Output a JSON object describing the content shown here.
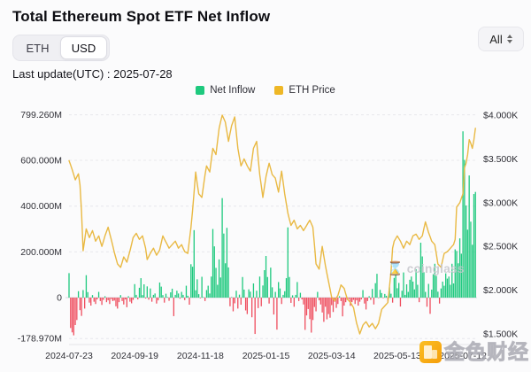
{
  "header": {
    "title": "Total Ethereum Spot ETF Net Inflow",
    "toggle": {
      "options": [
        "ETH",
        "USD"
      ],
      "selected": "USD"
    },
    "range_select": {
      "label": "All"
    },
    "last_update": "Last update(UTC) : 2025-07-28"
  },
  "legend": [
    {
      "label": "Net Inflow",
      "color": "#1ec97e"
    },
    {
      "label": "ETH Price",
      "color": "#eeb726"
    }
  ],
  "watermarks": {
    "coinglass": "coinglass",
    "jinse": "金色财经",
    "hourglass_icon": "⌛"
  },
  "chart_data": {
    "type": "bar+line",
    "title": "Total Ethereum Spot ETF Net Inflow",
    "legend_position": "top-center",
    "grid": "dashed-horizontal",
    "y_left": {
      "unit": "USD millions (net inflow)",
      "tick_labels": [
        "799.260M",
        "600.000M",
        "400.000M",
        "200.000M",
        "0",
        "-178.970M"
      ],
      "tick_values": [
        799.26,
        600,
        400,
        200,
        0,
        -178.97
      ],
      "min": -178.97,
      "max": 799.26
    },
    "y_right": {
      "unit": "ETH price USD",
      "tick_labels": [
        "$4.000K",
        "$3.500K",
        "$3.000K",
        "$2.500K",
        "$2.000K",
        "$1.500K"
      ],
      "tick_values": [
        4.0,
        3.5,
        3.0,
        2.5,
        2.0,
        1.5
      ],
      "min": 1.45,
      "max": 4.0
    },
    "x_axis": {
      "tick_labels": [
        "2024-07-23",
        "2024-09-19",
        "2024-11-18",
        "2025-01-15",
        "2025-03-14",
        "2025-05-13",
        "2025-07-12"
      ],
      "tick_indices": [
        0,
        42,
        84,
        126,
        168,
        210,
        252
      ],
      "start": "2024-07-23",
      "end": "2025-07-28"
    },
    "series": [
      {
        "name": "Net Inflow",
        "type": "bar",
        "color_positive": "#1ec97e",
        "color_negative": "#ef4d5e",
        "unit": "USD millions",
        "values": [
          107,
          -133,
          -152,
          -165,
          -120,
          -98,
          28,
          -55,
          -80,
          33,
          -48,
          98,
          24,
          -22,
          -35,
          11,
          -18,
          -28,
          -8,
          25,
          -15,
          -32,
          -10,
          6,
          -20,
          -12,
          -28,
          -6,
          -15,
          -13,
          -38,
          -48,
          -20,
          11,
          -15,
          -30,
          -8,
          -42,
          6,
          -18,
          -25,
          -10,
          59,
          12,
          -8,
          43,
          85,
          11,
          58,
          -4,
          49,
          -9,
          40,
          -18,
          12,
          18,
          -26,
          -12,
          66,
          48,
          11,
          -22,
          17,
          2,
          -14,
          23,
          39,
          -81,
          12,
          30,
          18,
          -5,
          25,
          12,
          -11,
          52,
          8,
          -31,
          146,
          135,
          295,
          32,
          80,
          15,
          -3,
          91,
          2,
          -15,
          33,
          52,
          18,
          92,
          300,
          224,
          130,
          56,
          167,
          88,
          435,
          280,
          150,
          305,
          132,
          -38,
          2,
          -60,
          -25,
          30,
          -48,
          13,
          -31,
          90,
          35,
          -56,
          -72,
          36,
          26,
          -86,
          62,
          -159,
          30,
          -46,
          92,
          -38,
          53,
          120,
          182,
          90,
          -26,
          131,
          45,
          -74,
          25,
          -140,
          68,
          40,
          -28,
          12,
          28,
          85,
          307,
          90,
          -23,
          10,
          -40,
          12,
          68,
          -15,
          21,
          -8,
          -30,
          -141,
          -78,
          -50,
          -94,
          -153,
          -98,
          -41,
          -60,
          25,
          -12,
          -30,
          -65,
          -106,
          -40,
          -95,
          -72,
          -88,
          -33,
          -63,
          -18,
          -45,
          -28,
          6,
          -15,
          -82,
          -35,
          -20,
          -10,
          -6,
          -36,
          -20,
          -10,
          -28,
          -12,
          -35,
          -18,
          -8,
          33,
          -26,
          -52,
          -15,
          6,
          -10,
          38,
          -30,
          63,
          104,
          -2,
          34,
          20,
          -2,
          16,
          8,
          -18,
          45,
          17,
          -22,
          86,
          102,
          41,
          64,
          -39,
          30,
          110,
          12,
          58,
          25,
          78,
          92,
          70,
          36,
          124,
          56,
          -20,
          240,
          180,
          111,
          25,
          -40,
          60,
          -71,
          35,
          102,
          148,
          95,
          26,
          -26,
          40,
          70,
          52,
          106,
          83,
          92,
          56,
          148,
          62,
          211,
          204,
          150,
          259,
          192,
          727,
          602,
          403,
          297,
          534,
          332,
          231,
          453,
          462
        ]
      },
      {
        "name": "ETH Price",
        "type": "line",
        "color": "#e9b943",
        "unit": "USD thousands",
        "anchors": [
          [
            0,
            3.48
          ],
          [
            2,
            3.38
          ],
          [
            4,
            3.26
          ],
          [
            6,
            3.33
          ],
          [
            7,
            3.2
          ],
          [
            8,
            2.9
          ],
          [
            9,
            2.45
          ],
          [
            11,
            2.7
          ],
          [
            13,
            2.6
          ],
          [
            15,
            2.68
          ],
          [
            17,
            2.56
          ],
          [
            19,
            2.62
          ],
          [
            21,
            2.5
          ],
          [
            23,
            2.62
          ],
          [
            25,
            2.72
          ],
          [
            27,
            2.58
          ],
          [
            29,
            2.43
          ],
          [
            31,
            2.3
          ],
          [
            33,
            2.26
          ],
          [
            35,
            2.38
          ],
          [
            37,
            2.32
          ],
          [
            39,
            2.45
          ],
          [
            41,
            2.6
          ],
          [
            43,
            2.65
          ],
          [
            45,
            2.58
          ],
          [
            47,
            2.62
          ],
          [
            49,
            2.48
          ],
          [
            50,
            2.35
          ],
          [
            52,
            2.42
          ],
          [
            54,
            2.48
          ],
          [
            56,
            2.4
          ],
          [
            58,
            2.46
          ],
          [
            60,
            2.62
          ],
          [
            62,
            2.55
          ],
          [
            64,
            2.48
          ],
          [
            66,
            2.52
          ],
          [
            68,
            2.56
          ],
          [
            70,
            2.48
          ],
          [
            72,
            2.52
          ],
          [
            74,
            2.44
          ],
          [
            76,
            2.42
          ],
          [
            78,
            2.72
          ],
          [
            79,
            2.9
          ],
          [
            80,
            3.12
          ],
          [
            81,
            3.35
          ],
          [
            82,
            3.22
          ],
          [
            83,
            3.1
          ],
          [
            85,
            3.06
          ],
          [
            87,
            3.32
          ],
          [
            88,
            3.42
          ],
          [
            90,
            3.35
          ],
          [
            92,
            3.62
          ],
          [
            94,
            3.55
          ],
          [
            96,
            3.85
          ],
          [
            98,
            4.0
          ],
          [
            100,
            3.92
          ],
          [
            102,
            3.7
          ],
          [
            104,
            3.88
          ],
          [
            106,
            3.98
          ],
          [
            108,
            3.62
          ],
          [
            110,
            3.42
          ],
          [
            112,
            3.5
          ],
          [
            114,
            3.42
          ],
          [
            116,
            3.36
          ],
          [
            118,
            3.62
          ],
          [
            120,
            3.7
          ],
          [
            122,
            3.32
          ],
          [
            124,
            3.06
          ],
          [
            126,
            3.3
          ],
          [
            128,
            3.45
          ],
          [
            130,
            3.32
          ],
          [
            132,
            3.28
          ],
          [
            134,
            3.12
          ],
          [
            136,
            3.36
          ],
          [
            138,
            3.1
          ],
          [
            140,
            2.88
          ],
          [
            142,
            2.74
          ],
          [
            144,
            2.8
          ],
          [
            146,
            2.7
          ],
          [
            148,
            2.74
          ],
          [
            150,
            2.68
          ],
          [
            152,
            2.74
          ],
          [
            154,
            2.8
          ],
          [
            156,
            2.72
          ],
          [
            157,
            2.52
          ],
          [
            158,
            2.3
          ],
          [
            160,
            2.24
          ],
          [
            162,
            2.5
          ],
          [
            164,
            2.28
          ],
          [
            166,
            2.1
          ],
          [
            168,
            1.92
          ],
          [
            170,
            1.88
          ],
          [
            172,
            1.94
          ],
          [
            174,
            2.06
          ],
          [
            176,
            2.02
          ],
          [
            178,
            1.9
          ],
          [
            180,
            1.86
          ],
          [
            182,
            1.8
          ],
          [
            184,
            1.62
          ],
          [
            186,
            1.5
          ],
          [
            188,
            1.6
          ],
          [
            190,
            1.64
          ],
          [
            192,
            1.58
          ],
          [
            194,
            1.62
          ],
          [
            196,
            1.56
          ],
          [
            198,
            1.62
          ],
          [
            200,
            1.78
          ],
          [
            202,
            1.82
          ],
          [
            204,
            1.86
          ],
          [
            206,
            2.22
          ],
          [
            207,
            2.48
          ],
          [
            208,
            2.56
          ],
          [
            210,
            2.62
          ],
          [
            212,
            2.56
          ],
          [
            214,
            2.48
          ],
          [
            216,
            2.56
          ],
          [
            218,
            2.52
          ],
          [
            220,
            2.62
          ],
          [
            222,
            2.64
          ],
          [
            224,
            2.58
          ],
          [
            226,
            2.62
          ],
          [
            228,
            2.78
          ],
          [
            230,
            2.66
          ],
          [
            232,
            2.56
          ],
          [
            234,
            2.52
          ],
          [
            236,
            2.3
          ],
          [
            238,
            2.26
          ],
          [
            240,
            2.42
          ],
          [
            242,
            2.44
          ],
          [
            244,
            2.48
          ],
          [
            246,
            2.52
          ],
          [
            247,
            2.58
          ],
          [
            248,
            2.95
          ],
          [
            250,
            3.0
          ],
          [
            252,
            3.1
          ],
          [
            253,
            3.4
          ],
          [
            254,
            3.45
          ],
          [
            255,
            3.55
          ],
          [
            256,
            3.72
          ],
          [
            257,
            3.68
          ],
          [
            258,
            3.62
          ],
          [
            259,
            3.72
          ],
          [
            260,
            3.85
          ]
        ]
      }
    ]
  }
}
